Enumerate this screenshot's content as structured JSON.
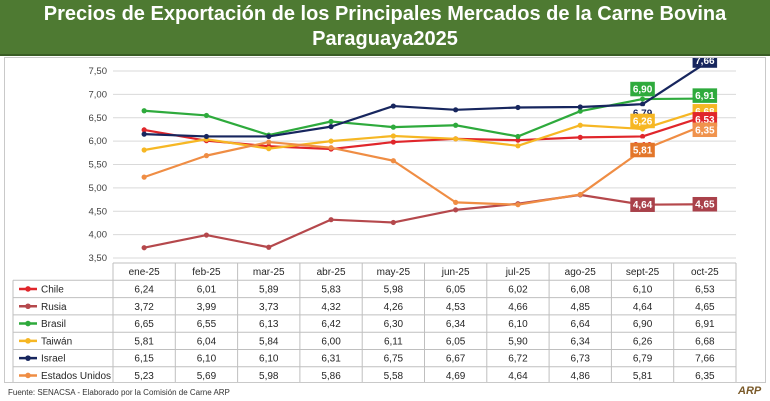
{
  "title": {
    "line1": "Precios de Exportación de los Principales Mercados de la Carne Bovina",
    "line2": "Paraguaya2025"
  },
  "footer": "Fuente: SENACSA - Elaborado por la Comisión de Carne ARP",
  "logo_text": "ARP",
  "chart_data": {
    "type": "line",
    "title": "Precios de Exportación de los Principales Mercados de la Carne Bovina Paraguaya2025",
    "categories": [
      "ene-25",
      "feb-25",
      "mar-25",
      "abr-25",
      "may-25",
      "jun-25",
      "jul-25",
      "ago-25",
      "sept-25",
      "oct-25"
    ],
    "yticks": [
      "7,50",
      "7,00",
      "6,50",
      "6,00",
      "5,50",
      "5,00",
      "4,50",
      "4,00",
      "3,50"
    ],
    "ylim": [
      3.5,
      7.5
    ],
    "grid": true,
    "series": [
      {
        "name": "Chile",
        "color": "#e0262b",
        "values": [
          6.24,
          6.01,
          5.89,
          5.83,
          5.98,
          6.05,
          6.02,
          6.08,
          6.1,
          6.53
        ],
        "labels": [
          "6,24",
          "6,01",
          "5,89",
          "5,83",
          "5,98",
          "6,05",
          "6,02",
          "6,08",
          "6,10",
          "6,53"
        ]
      },
      {
        "name": "Rusia",
        "color": "#b5484c",
        "values": [
          3.72,
          3.99,
          3.73,
          4.32,
          4.26,
          4.53,
          4.66,
          4.85,
          4.64,
          4.65
        ],
        "labels": [
          "3,72",
          "3,99",
          "3,73",
          "4,32",
          "4,26",
          "4,53",
          "4,66",
          "4,85",
          "4,64",
          "4,65"
        ]
      },
      {
        "name": "Brasil",
        "color": "#2eaa3c",
        "values": [
          6.65,
          6.55,
          6.13,
          6.42,
          6.3,
          6.34,
          6.1,
          6.64,
          6.9,
          6.91
        ],
        "labels": [
          "6,65",
          "6,55",
          "6,13",
          "6,42",
          "6,30",
          "6,34",
          "6,10",
          "6,64",
          "6,90",
          "6,91"
        ]
      },
      {
        "name": "Taiwán",
        "color": "#f6b724",
        "values": [
          5.81,
          6.04,
          5.84,
          6.0,
          6.11,
          6.05,
          5.9,
          6.34,
          6.26,
          6.68
        ],
        "labels": [
          "5,81",
          "6,04",
          "5,84",
          "6,00",
          "6,11",
          "6,05",
          "5,90",
          "6,34",
          "6,26",
          "6,68"
        ]
      },
      {
        "name": "Israel",
        "color": "#17265e",
        "values": [
          6.15,
          6.1,
          6.1,
          6.31,
          6.75,
          6.67,
          6.72,
          6.73,
          6.79,
          7.66
        ],
        "labels": [
          "6,15",
          "6,10",
          "6,10",
          "6,31",
          "6,75",
          "6,67",
          "6,72",
          "6,73",
          "6,79",
          "7,66"
        ]
      },
      {
        "name": "Estados Unidos",
        "color": "#ef8d44",
        "values": [
          5.23,
          5.69,
          5.98,
          5.86,
          5.58,
          4.69,
          4.64,
          4.86,
          5.81,
          6.35
        ],
        "labels": [
          "5,23",
          "5,69",
          "5,98",
          "5,86",
          "5,58",
          "4,69",
          "4,64",
          "4,86",
          "5,81",
          "6,35"
        ]
      }
    ],
    "callouts": [
      {
        "series": "Brasil",
        "index": 8,
        "label": "6,90",
        "bg": "#2eaa3c",
        "fg": "#ffffff"
      },
      {
        "series": "Israel",
        "index": 8,
        "label": "6,79",
        "bg": "#ffffff",
        "fg": "#17265e"
      },
      {
        "series": "Taiwán",
        "index": 8,
        "label": "6,26",
        "bg": "#f6b724",
        "fg": "#ffffff"
      },
      {
        "series": "Chile",
        "index": 8,
        "label": "6,10",
        "bg": "#ffffff",
        "fg": "#e0262b"
      },
      {
        "series": "Estados Unidos",
        "index": 8,
        "label": "5,81",
        "bg": "#e3762a",
        "fg": "#ffffff"
      },
      {
        "series": "Rusia",
        "index": 8,
        "label": "4,64",
        "bg": "#a9414a",
        "fg": "#ffffff"
      },
      {
        "series": "Israel",
        "index": 9,
        "label": "7,66",
        "bg": "#17265e",
        "fg": "#ffffff"
      },
      {
        "series": "Brasil",
        "index": 9,
        "label": "6,91",
        "bg": "#2eaa3c",
        "fg": "#ffffff"
      },
      {
        "series": "Taiwán",
        "index": 9,
        "label": "6,68",
        "bg": "#f6b724",
        "fg": "#ffffff"
      },
      {
        "series": "Chile",
        "index": 9,
        "label": "6,53",
        "bg": "#e0262b",
        "fg": "#ffffff"
      },
      {
        "series": "Estados Unidos",
        "index": 9,
        "label": "6,35",
        "bg": "#f0934d",
        "fg": "#ffffff"
      },
      {
        "series": "Rusia",
        "index": 9,
        "label": "4,65",
        "bg": "#a9414a",
        "fg": "#ffffff"
      }
    ]
  }
}
